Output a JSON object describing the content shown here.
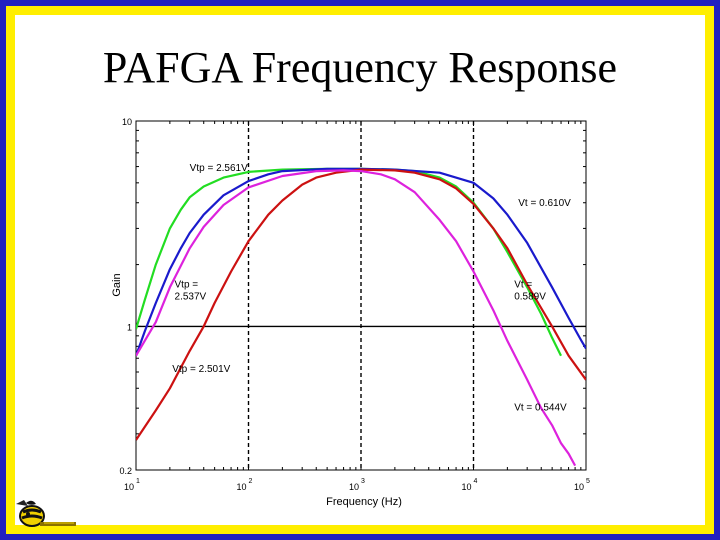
{
  "slide": {
    "title": "PAFGA Frequency Response"
  },
  "chart_data": {
    "type": "line",
    "xscale": "log",
    "yscale": "log",
    "xlim": [
      10,
      100000
    ],
    "ylim": [
      0.2,
      10
    ],
    "xlabel": "Frequency (Hz)",
    "ylabel": "Gain",
    "yticks": [
      {
        "value": 10,
        "label": "10"
      },
      {
        "value": 1,
        "label": "1"
      },
      {
        "value": 0.2,
        "label": "0.2"
      }
    ],
    "xticks": [
      {
        "value": 10,
        "base": "10",
        "exp": "1"
      },
      {
        "value": 100,
        "base": "10",
        "exp": "2"
      },
      {
        "value": 1000,
        "base": "10",
        "exp": "3"
      },
      {
        "value": 10000,
        "base": "10",
        "exp": "4"
      },
      {
        "value": 100000,
        "base": "10",
        "exp": "5"
      }
    ],
    "reference_lines": {
      "vertical": [
        100,
        1000,
        10000
      ],
      "horizontal": [
        1
      ]
    },
    "series": [
      {
        "color": "#22dd22",
        "points": [
          [
            10,
            0.97
          ],
          [
            12,
            1.35
          ],
          [
            15,
            2.0
          ],
          [
            20,
            3.0
          ],
          [
            25,
            3.7
          ],
          [
            30,
            4.25
          ],
          [
            40,
            4.8
          ],
          [
            60,
            5.3
          ],
          [
            100,
            5.65
          ],
          [
            200,
            5.8
          ],
          [
            500,
            5.85
          ],
          [
            1000,
            5.85
          ],
          [
            2000,
            5.8
          ],
          [
            3000,
            5.7
          ],
          [
            5000,
            5.3
          ],
          [
            7000,
            4.8
          ],
          [
            10000,
            4.0
          ],
          [
            15000,
            3.0
          ],
          [
            20000,
            2.3
          ],
          [
            30000,
            1.55
          ],
          [
            40000,
            1.15
          ],
          [
            50000,
            0.88
          ],
          [
            60000,
            0.72
          ]
        ]
      },
      {
        "color": "#1a1acc",
        "points": [
          [
            10,
            0.72
          ],
          [
            12,
            0.95
          ],
          [
            15,
            1.3
          ],
          [
            20,
            1.9
          ],
          [
            25,
            2.4
          ],
          [
            30,
            2.85
          ],
          [
            40,
            3.5
          ],
          [
            60,
            4.35
          ],
          [
            100,
            5.1
          ],
          [
            150,
            5.5
          ],
          [
            200,
            5.7
          ],
          [
            500,
            5.85
          ],
          [
            1000,
            5.85
          ],
          [
            2000,
            5.8
          ],
          [
            5000,
            5.6
          ],
          [
            10000,
            5.0
          ],
          [
            15000,
            4.2
          ],
          [
            20000,
            3.5
          ],
          [
            30000,
            2.55
          ],
          [
            50000,
            1.55
          ],
          [
            70000,
            1.1
          ],
          [
            90000,
            0.86
          ],
          [
            100000,
            0.78
          ]
        ]
      },
      {
        "color": "#cc1111",
        "points": [
          [
            10,
            0.28
          ],
          [
            15,
            0.39
          ],
          [
            20,
            0.5
          ],
          [
            30,
            0.76
          ],
          [
            40,
            1.0
          ],
          [
            50,
            1.3
          ],
          [
            70,
            1.85
          ],
          [
            100,
            2.6
          ],
          [
            150,
            3.5
          ],
          [
            200,
            4.1
          ],
          [
            300,
            4.9
          ],
          [
            400,
            5.3
          ],
          [
            600,
            5.6
          ],
          [
            1000,
            5.8
          ],
          [
            2000,
            5.75
          ],
          [
            3000,
            5.6
          ],
          [
            5000,
            5.2
          ],
          [
            7000,
            4.7
          ],
          [
            10000,
            3.95
          ],
          [
            15000,
            3.0
          ],
          [
            20000,
            2.4
          ],
          [
            30000,
            1.6
          ],
          [
            50000,
            1.0
          ],
          [
            70000,
            0.72
          ],
          [
            100000,
            0.55
          ]
        ]
      },
      {
        "color": "#dd22dd",
        "points": [
          [
            10,
            0.72
          ],
          [
            15,
            1.05
          ],
          [
            20,
            1.55
          ],
          [
            30,
            2.4
          ],
          [
            40,
            3.05
          ],
          [
            60,
            3.9
          ],
          [
            100,
            4.75
          ],
          [
            200,
            5.4
          ],
          [
            400,
            5.7
          ],
          [
            700,
            5.75
          ],
          [
            1000,
            5.7
          ],
          [
            1500,
            5.5
          ],
          [
            2000,
            5.2
          ],
          [
            3000,
            4.5
          ],
          [
            5000,
            3.3
          ],
          [
            7000,
            2.6
          ],
          [
            10000,
            1.85
          ],
          [
            15000,
            1.2
          ],
          [
            20000,
            0.85
          ],
          [
            30000,
            0.55
          ],
          [
            40000,
            0.4
          ],
          [
            50000,
            0.33
          ],
          [
            60000,
            0.27
          ],
          [
            70000,
            0.24
          ],
          [
            80000,
            0.21
          ]
        ]
      }
    ],
    "annotations": [
      {
        "lines": [
          "Vtp = 2.561V"
        ],
        "x": 30,
        "y": 5.7
      },
      {
        "lines": [
          "Vt = 0.610V"
        ],
        "x": 25000,
        "y": 3.85
      },
      {
        "lines": [
          "Vtp =",
          "2.537V"
        ],
        "x": 22,
        "y": 1.55
      },
      {
        "lines": [
          "Vt =",
          "0.589V"
        ],
        "x": 23000,
        "y": 1.55
      },
      {
        "lines": [
          "Vtp = 2.501V"
        ],
        "x": 21,
        "y": 0.6
      },
      {
        "lines": [
          "Vt = 0.544V"
        ],
        "x": 23000,
        "y": 0.39
      }
    ]
  }
}
